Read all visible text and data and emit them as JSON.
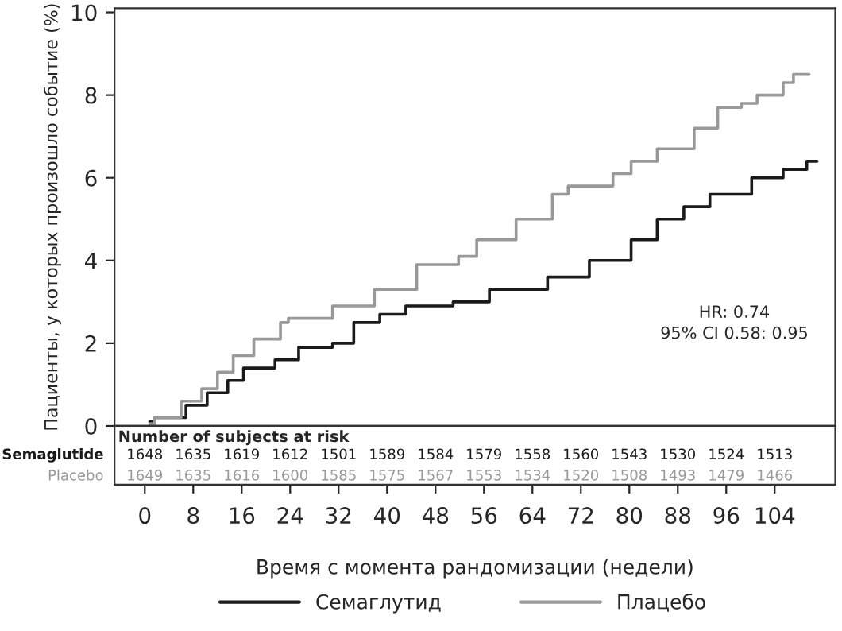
{
  "chart_data": {
    "type": "step",
    "xlabel": "Время с момента рандомизации (недели)",
    "ylabel": "Пациенты, у которых произошло событие (%)",
    "xlim": [
      -5,
      114
    ],
    "xticks": [
      0,
      8,
      16,
      24,
      32,
      40,
      48,
      56,
      64,
      72,
      80,
      88,
      96,
      104
    ],
    "ylim": [
      0,
      10.1
    ],
    "yticks": [
      0,
      2,
      4,
      6,
      8,
      10
    ],
    "grid": false,
    "legend": "bottom",
    "line_style": "solid",
    "marker": "none",
    "series": [
      {
        "name": "Семаглутид",
        "color": "#1a1a1a",
        "x": [
          0.8,
          1.6,
          6.8,
          10.3,
          13.7,
          16.3,
          21.5,
          25.4,
          31,
          34.5,
          38.8,
          43.1,
          50.9,
          56.9,
          66.5,
          73.4,
          80.3,
          84.6,
          89,
          93.3,
          100.2,
          105.4,
          109.3,
          111
        ],
        "values": [
          0.1,
          0.2,
          0.5,
          0.8,
          1.1,
          1.4,
          1.6,
          1.9,
          2.0,
          2.5,
          2.7,
          2.9,
          3.0,
          3.3,
          3.6,
          4.0,
          4.5,
          5.0,
          5.3,
          5.6,
          6.0,
          6.2,
          6.4,
          6.4
        ]
      },
      {
        "name": "Плацебо",
        "color": "#999999",
        "x": [
          0.8,
          1.6,
          6,
          9.4,
          12,
          14.6,
          18,
          22.4,
          23.7,
          29.7,
          31,
          37.9,
          44.9,
          51.8,
          54.8,
          61.3,
          67.3,
          69.9,
          77.3,
          80.3,
          84.6,
          90.7,
          94.6,
          98.5,
          101.1,
          105.4,
          107.1,
          109.7
        ],
        "values": [
          0.05,
          0.2,
          0.6,
          0.9,
          1.3,
          1.7,
          2.1,
          2.5,
          2.6,
          2.6,
          2.9,
          3.3,
          3.9,
          4.1,
          4.5,
          5.0,
          5.6,
          5.8,
          6.1,
          6.4,
          6.7,
          7.2,
          7.7,
          7.8,
          8.0,
          8.3,
          8.5,
          8.5
        ]
      }
    ],
    "annotations": [
      "HR: 0.74",
      "95% CI 0.58: 0.95",
      "Number of subjects at risk",
      "Semaglutide",
      "1648",
      "1635",
      "1619",
      "1612",
      "1501",
      "1589",
      "1584",
      "1579",
      "1558",
      "1560",
      "1543",
      "1530",
      "1524",
      "1513",
      "Placebo",
      "1649",
      "1635",
      "1616",
      "1600",
      "1585",
      "1575",
      "1567",
      "1553",
      "1534",
      "1520",
      "1508",
      "1493",
      "1479",
      "1466"
    ]
  }
}
